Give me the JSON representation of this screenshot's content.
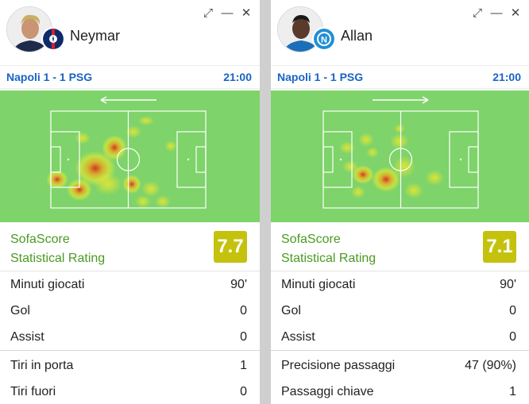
{
  "cards": [
    {
      "player_name": "Neymar",
      "club_icon": "psg-crest-icon",
      "match": "Napoli 1 - 1 PSG",
      "time": "21:00",
      "attack_direction": "left",
      "rating_label_line1": "SofaScore",
      "rating_label_line2": "Statistical Rating",
      "rating": "7.7",
      "stats_group1": [
        {
          "label": "Minuti giocati",
          "value": "90'"
        },
        {
          "label": "Gol",
          "value": "0"
        },
        {
          "label": "Assist",
          "value": "0"
        }
      ],
      "stats_group2": [
        {
          "label": "Tiri in porta",
          "value": "1"
        },
        {
          "label": "Tiri fuori",
          "value": "0"
        }
      ]
    },
    {
      "player_name": "Allan",
      "club_icon": "napoli-crest-icon",
      "match": "Napoli 1 - 1 PSG",
      "time": "21:00",
      "attack_direction": "right",
      "rating_label_line1": "SofaScore",
      "rating_label_line2": "Statistical Rating",
      "rating": "7.1",
      "stats_group1": [
        {
          "label": "Minuti giocati",
          "value": "90'"
        },
        {
          "label": "Gol",
          "value": "0"
        },
        {
          "label": "Assist",
          "value": "0"
        }
      ],
      "stats_group2": [
        {
          "label": "Precisione passaggi",
          "value": "47 (90%)"
        },
        {
          "label": "Passaggi chiave",
          "value": "1"
        }
      ]
    }
  ],
  "window_controls": {
    "expand_icon": "expand-icon",
    "minimize_icon": "minimize-icon",
    "close_icon": "close-icon"
  },
  "colors": {
    "pitch": "#7ed36a",
    "rating_box": "#c4c20d",
    "rating_label": "#4a9a22",
    "match_link": "#1a64c4"
  }
}
